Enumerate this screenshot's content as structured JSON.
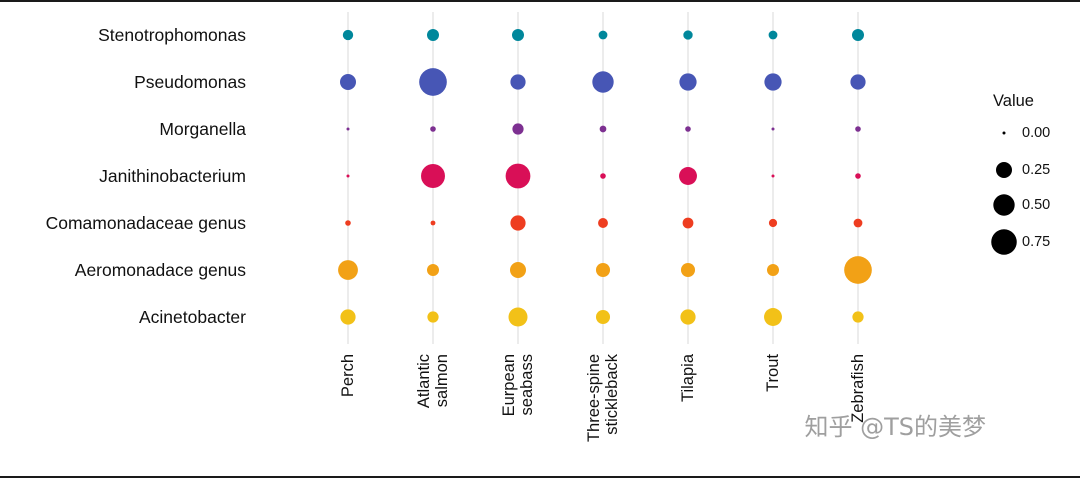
{
  "chart_data": {
    "type": "scatter",
    "subtype": "bubble-matrix",
    "title": "",
    "xlabel": "",
    "ylabel": "",
    "x_categories": [
      {
        "label": "Perch",
        "lines": [
          "Perch"
        ]
      },
      {
        "label": "Atlantic salmon",
        "lines": [
          "Atlantic",
          "salmon"
        ]
      },
      {
        "label": "Eurpean seabass",
        "lines": [
          "Eurpean",
          "seabass"
        ]
      },
      {
        "label": "Three-spine stickleback",
        "lines": [
          "Three-spine",
          "stickleback"
        ]
      },
      {
        "label": "Tilapia",
        "lines": [
          "Tilapia"
        ]
      },
      {
        "label": "Trout",
        "lines": [
          "Trout"
        ]
      },
      {
        "label": "Zebrafish",
        "lines": [
          "Zebrafish"
        ]
      }
    ],
    "series": [
      {
        "name": "Stenotrophomonas",
        "color": "#00879b",
        "values": [
          0.08,
          0.12,
          0.12,
          0.05,
          0.06,
          0.05,
          0.12
        ]
      },
      {
        "name": "Pseudomonas",
        "color": "#4756b5",
        "values": [
          0.25,
          0.9,
          0.22,
          0.5,
          0.3,
          0.3,
          0.22
        ]
      },
      {
        "name": "Morganella",
        "color": "#7d3091",
        "values": [
          0.0,
          0.01,
          0.1,
          0.02,
          0.01,
          0.0,
          0.01
        ]
      },
      {
        "name": "Janithinobacterium",
        "color": "#d90f57",
        "values": [
          0.0,
          0.65,
          0.7,
          0.01,
          0.33,
          0.0,
          0.01
        ]
      },
      {
        "name": "Comamonadaceae genus",
        "color": "#ee3d20",
        "values": [
          0.01,
          0.005,
          0.22,
          0.07,
          0.09,
          0.04,
          0.05
        ]
      },
      {
        "name": "Aeromonadace genus",
        "color": "#f2a116",
        "values": [
          0.42,
          0.12,
          0.25,
          0.18,
          0.18,
          0.12,
          0.9
        ]
      },
      {
        "name": "Acinetobacter",
        "color": "#f2c118",
        "values": [
          0.22,
          0.1,
          0.38,
          0.18,
          0.22,
          0.33,
          0.1
        ]
      }
    ],
    "legend": {
      "title": "Value",
      "position": "right",
      "sizes": [
        0.0,
        0.25,
        0.5,
        0.75
      ],
      "labels": [
        "0.00",
        "0.25",
        "0.50",
        "0.75"
      ],
      "color": "#000000"
    },
    "axes": {
      "grid": "vertical",
      "grid_color": "#dadada",
      "label_color": "#111111"
    }
  },
  "watermark": {
    "text": "知乎 @TS的美梦"
  }
}
